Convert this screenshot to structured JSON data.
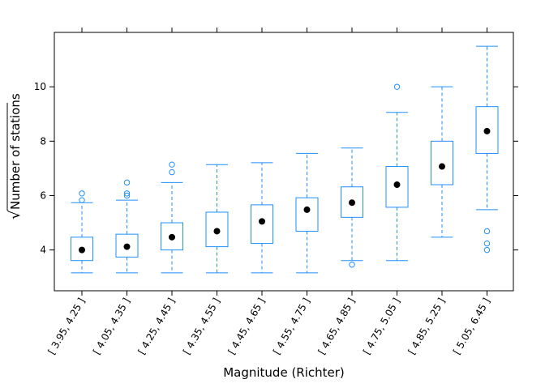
{
  "chart_data": {
    "type": "box",
    "xlabel": "Magnitude (Richter)",
    "ylabel": "Number of stations",
    "ylabel_prefix": "√",
    "ylim": [
      2.5,
      12.0
    ],
    "yticks": [
      4,
      6,
      8,
      10
    ],
    "categories": [
      "[ 3.95, 4.25 ]",
      "[ 4.05, 4.35 ]",
      "[ 4.25, 4.45 ]",
      "[ 4.35, 4.55 ]",
      "[ 4.45, 4.65 ]",
      "[ 4.55, 4.75 ]",
      "[ 4.65, 4.85 ]",
      "[ 4.75, 5.05 ]",
      "[ 4.85, 5.25 ]",
      "[ 5.05, 6.45 ]"
    ],
    "boxes": [
      {
        "whisker_low": 3.16,
        "q1": 3.61,
        "median": 4.0,
        "q3": 4.47,
        "whisker_high": 5.74,
        "outliers": [
          5.83,
          6.08
        ]
      },
      {
        "whisker_low": 3.16,
        "q1": 3.74,
        "median": 4.12,
        "q3": 4.58,
        "whisker_high": 5.83,
        "outliers": [
          6.0,
          6.08,
          6.48
        ]
      },
      {
        "whisker_low": 3.16,
        "q1": 4.0,
        "median": 4.47,
        "q3": 5.0,
        "whisker_high": 6.48,
        "outliers": [
          6.86,
          7.14
        ]
      },
      {
        "whisker_low": 3.16,
        "q1": 4.12,
        "median": 4.69,
        "q3": 5.39,
        "whisker_high": 7.14,
        "outliers": []
      },
      {
        "whisker_low": 3.16,
        "q1": 4.24,
        "median": 5.05,
        "q3": 5.66,
        "whisker_high": 7.21,
        "outliers": []
      },
      {
        "whisker_low": 3.16,
        "q1": 4.69,
        "median": 5.48,
        "q3": 5.92,
        "whisker_high": 7.55,
        "outliers": []
      },
      {
        "whisker_low": 3.61,
        "q1": 5.2,
        "median": 5.74,
        "q3": 6.32,
        "whisker_high": 7.75,
        "outliers": [
          3.46
        ]
      },
      {
        "whisker_low": 3.61,
        "q1": 5.57,
        "median": 6.4,
        "q3": 7.07,
        "whisker_high": 9.06,
        "outliers": [
          10.0
        ]
      },
      {
        "whisker_low": 4.47,
        "q1": 6.4,
        "median": 7.07,
        "q3": 8.0,
        "whisker_high": 10.0,
        "outliers": []
      },
      {
        "whisker_low": 5.48,
        "q1": 7.55,
        "median": 8.37,
        "q3": 9.27,
        "whisker_high": 11.49,
        "outliers": [
          4.69,
          4.24,
          4.0
        ]
      }
    ],
    "colors": {
      "box": "#1f8fff",
      "median": "#000000",
      "axis": "#000000"
    },
    "grid": false,
    "legend": "none"
  }
}
